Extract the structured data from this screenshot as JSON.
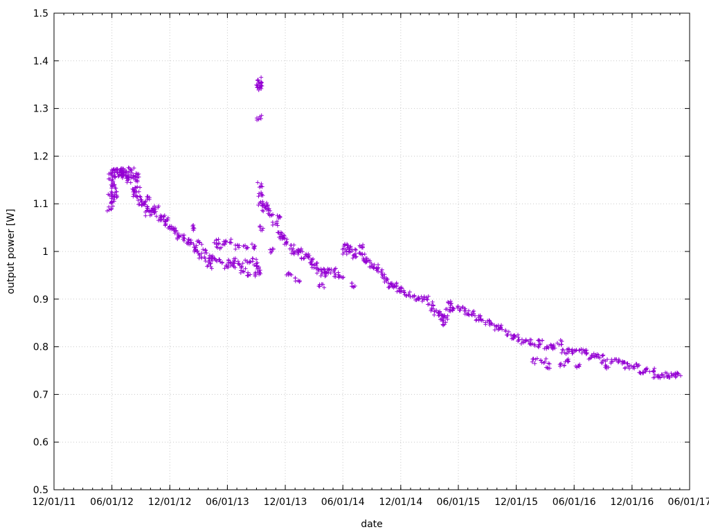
{
  "chart_data": {
    "type": "scatter",
    "xlabel": "date",
    "ylabel": "output power [W]",
    "xlim": [
      "2011-12-01",
      "2017-06-01"
    ],
    "ylim": [
      0.5,
      1.5
    ],
    "x_ticks": [
      "12/01/11",
      "06/01/12",
      "12/01/12",
      "06/01/13",
      "12/01/13",
      "06/01/14",
      "12/01/14",
      "06/01/15",
      "12/01/15",
      "06/01/16",
      "12/01/16",
      "06/01/17"
    ],
    "y_ticks": [
      0.5,
      0.6,
      0.7,
      0.8,
      0.9,
      1,
      1.1,
      1.2,
      1.3,
      1.4,
      1.5
    ],
    "y_tick_labels": [
      "0.5",
      "0.6",
      "0.7",
      "0.8",
      "0.9",
      "1",
      "1.1",
      "1.2",
      "1.3",
      "1.4",
      "1.5"
    ],
    "grid": true,
    "marker": "+",
    "color": "#9400d3",
    "series": [
      {
        "points": [
          [
            "2012-05-26",
            1.09
          ],
          [
            "2012-05-27",
            1.12
          ],
          [
            "2012-05-28",
            1.15
          ],
          [
            "2012-05-30",
            1.16
          ],
          [
            "2012-06-01",
            1.1
          ],
          [
            "2012-06-02",
            1.14
          ],
          [
            "2012-06-04",
            1.17
          ],
          [
            "2012-06-07",
            1.11
          ],
          [
            "2012-06-09",
            1.13
          ],
          [
            "2012-06-12",
            1.17
          ],
          [
            "2012-06-15",
            1.12
          ],
          [
            "2012-06-18",
            1.16
          ],
          [
            "2012-06-22",
            1.17
          ],
          [
            "2012-06-26",
            1.16
          ],
          [
            "2012-06-30",
            1.17
          ],
          [
            "2012-07-05",
            1.16
          ],
          [
            "2012-07-10",
            1.17
          ],
          [
            "2012-07-15",
            1.16
          ],
          [
            "2012-07-20",
            1.16
          ],
          [
            "2012-07-25",
            1.15
          ],
          [
            "2012-08-01",
            1.17
          ],
          [
            "2012-08-05",
            1.16
          ],
          [
            "2012-08-08",
            1.13
          ],
          [
            "2012-08-10",
            1.12
          ],
          [
            "2012-08-14",
            1.15
          ],
          [
            "2012-08-18",
            1.16
          ],
          [
            "2012-08-22",
            1.13
          ],
          [
            "2012-08-26",
            1.11
          ],
          [
            "2012-09-01",
            1.1
          ],
          [
            "2012-09-08",
            1.1
          ],
          [
            "2012-09-15",
            1.09
          ],
          [
            "2012-09-22",
            1.08
          ],
          [
            "2012-09-28",
            1.11
          ],
          [
            "2012-10-05",
            1.09
          ],
          [
            "2012-10-12",
            1.08
          ],
          [
            "2012-10-20",
            1.09
          ],
          [
            "2012-10-28",
            1.07
          ],
          [
            "2012-11-05",
            1.07
          ],
          [
            "2012-11-12",
            1.06
          ],
          [
            "2012-11-20",
            1.07
          ],
          [
            "2012-12-01",
            1.05
          ],
          [
            "2012-12-10",
            1.05
          ],
          [
            "2012-12-20",
            1.04
          ],
          [
            "2013-01-01",
            1.03
          ],
          [
            "2013-01-12",
            1.03
          ],
          [
            "2013-01-22",
            1.02
          ],
          [
            "2013-02-01",
            1.02
          ],
          [
            "2013-02-10",
            1.05
          ],
          [
            "2013-02-15",
            1.01
          ],
          [
            "2013-02-25",
            1.0
          ],
          [
            "2013-03-05",
            1.02
          ],
          [
            "2013-03-12",
            0.99
          ],
          [
            "2013-03-20",
            1.0
          ],
          [
            "2013-03-28",
            0.98
          ],
          [
            "2013-04-05",
            0.97
          ],
          [
            "2013-04-12",
            0.99
          ],
          [
            "2013-04-20",
            0.98
          ],
          [
            "2013-04-28",
            1.02
          ],
          [
            "2013-05-05",
            1.01
          ],
          [
            "2013-05-12",
            0.98
          ],
          [
            "2013-05-20",
            1.02
          ],
          [
            "2013-05-28",
            0.97
          ],
          [
            "2013-06-05",
            1.02
          ],
          [
            "2013-06-12",
            0.98
          ],
          [
            "2013-06-20",
            0.97
          ],
          [
            "2013-06-28",
            0.98
          ],
          [
            "2013-07-05",
            1.01
          ],
          [
            "2013-07-12",
            0.97
          ],
          [
            "2013-07-20",
            0.96
          ],
          [
            "2013-07-28",
            1.01
          ],
          [
            "2013-08-05",
            0.98
          ],
          [
            "2013-08-12",
            0.95
          ],
          [
            "2013-08-20",
            1.01
          ],
          [
            "2013-08-28",
            0.98
          ],
          [
            "2013-09-01",
            0.97
          ],
          [
            "2013-09-05",
            0.95
          ],
          [
            "2013-09-06",
            0.96
          ],
          [
            "2013-09-08",
            1.35
          ],
          [
            "2013-09-09",
            1.36
          ],
          [
            "2013-09-10",
            1.34
          ],
          [
            "2013-09-11",
            1.35
          ],
          [
            "2013-09-09",
            1.28
          ],
          [
            "2013-09-12",
            1.14
          ],
          [
            "2013-09-14",
            1.12
          ],
          [
            "2013-09-16",
            1.1
          ],
          [
            "2013-09-20",
            1.05
          ],
          [
            "2013-09-24",
            1.09
          ],
          [
            "2013-09-30",
            1.1
          ],
          [
            "2013-10-06",
            1.09
          ],
          [
            "2013-10-15",
            1.08
          ],
          [
            "2013-10-22",
            1.0
          ],
          [
            "2013-10-30",
            1.06
          ],
          [
            "2013-11-06",
            1.07
          ],
          [
            "2013-11-12",
            1.04
          ],
          [
            "2013-11-20",
            1.03
          ],
          [
            "2013-11-28",
            1.03
          ],
          [
            "2013-12-05",
            1.02
          ],
          [
            "2013-12-12",
            0.95
          ],
          [
            "2013-12-20",
            1.01
          ],
          [
            "2013-12-28",
            1.0
          ],
          [
            "2014-01-05",
            1.0
          ],
          [
            "2014-01-10",
            0.94
          ],
          [
            "2014-01-18",
            1.0
          ],
          [
            "2014-01-28",
            0.99
          ],
          [
            "2014-02-08",
            0.99
          ],
          [
            "2014-02-20",
            0.98
          ],
          [
            "2014-03-01",
            0.97
          ],
          [
            "2014-03-10",
            0.97
          ],
          [
            "2014-03-20",
            0.96
          ],
          [
            "2014-03-25",
            0.93
          ],
          [
            "2014-04-01",
            0.95
          ],
          [
            "2014-04-10",
            0.96
          ],
          [
            "2014-04-20",
            0.96
          ],
          [
            "2014-05-01",
            0.96
          ],
          [
            "2014-05-12",
            0.95
          ],
          [
            "2014-05-25",
            0.95
          ],
          [
            "2014-06-05",
            1.0
          ],
          [
            "2014-06-12",
            1.01
          ],
          [
            "2014-06-20",
            1.01
          ],
          [
            "2014-06-28",
            1.0
          ],
          [
            "2014-07-05",
            0.93
          ],
          [
            "2014-07-10",
            0.99
          ],
          [
            "2014-07-18",
            1.0
          ],
          [
            "2014-07-28",
            1.01
          ],
          [
            "2014-08-05",
            0.99
          ],
          [
            "2014-08-12",
            0.98
          ],
          [
            "2014-08-20",
            0.98
          ],
          [
            "2014-09-01",
            0.97
          ],
          [
            "2014-09-12",
            0.97
          ],
          [
            "2014-09-25",
            0.96
          ],
          [
            "2014-10-05",
            0.95
          ],
          [
            "2014-10-15",
            0.94
          ],
          [
            "2014-10-25",
            0.93
          ],
          [
            "2014-11-05",
            0.93
          ],
          [
            "2014-11-15",
            0.93
          ],
          [
            "2014-11-25",
            0.92
          ],
          [
            "2014-12-05",
            0.92
          ],
          [
            "2014-12-20",
            0.91
          ],
          [
            "2015-01-05",
            0.91
          ],
          [
            "2015-01-20",
            0.9
          ],
          [
            "2015-02-05",
            0.9
          ],
          [
            "2015-02-20",
            0.9
          ],
          [
            "2015-03-05",
            0.89
          ],
          [
            "2015-03-15",
            0.88
          ],
          [
            "2015-03-25",
            0.87
          ],
          [
            "2015-04-05",
            0.87
          ],
          [
            "2015-04-12",
            0.86
          ],
          [
            "2015-04-15",
            0.85
          ],
          [
            "2015-04-22",
            0.86
          ],
          [
            "2015-05-01",
            0.88
          ],
          [
            "2015-05-08",
            0.89
          ],
          [
            "2015-05-18",
            0.88
          ],
          [
            "2015-06-01",
            0.88
          ],
          [
            "2015-06-15",
            0.88
          ],
          [
            "2015-07-01",
            0.87
          ],
          [
            "2015-07-15",
            0.87
          ],
          [
            "2015-08-01",
            0.86
          ],
          [
            "2015-08-15",
            0.86
          ],
          [
            "2015-09-01",
            0.85
          ],
          [
            "2015-09-15",
            0.85
          ],
          [
            "2015-10-01",
            0.84
          ],
          [
            "2015-10-15",
            0.84
          ],
          [
            "2015-11-01",
            0.83
          ],
          [
            "2015-11-15",
            0.82
          ],
          [
            "2015-12-01",
            0.82
          ],
          [
            "2015-12-15",
            0.81
          ],
          [
            "2016-01-01",
            0.81
          ],
          [
            "2016-01-15",
            0.81
          ],
          [
            "2016-01-28",
            0.77
          ],
          [
            "2016-02-05",
            0.8
          ],
          [
            "2016-02-15",
            0.81
          ],
          [
            "2016-02-25",
            0.77
          ],
          [
            "2016-03-05",
            0.8
          ],
          [
            "2016-03-10",
            0.76
          ],
          [
            "2016-03-20",
            0.8
          ],
          [
            "2016-04-01",
            0.8
          ],
          [
            "2016-04-15",
            0.81
          ],
          [
            "2016-04-25",
            0.76
          ],
          [
            "2016-05-01",
            0.79
          ],
          [
            "2016-05-10",
            0.77
          ],
          [
            "2016-05-20",
            0.79
          ],
          [
            "2016-06-01",
            0.79
          ],
          [
            "2016-06-15",
            0.76
          ],
          [
            "2016-06-25",
            0.79
          ],
          [
            "2016-07-10",
            0.79
          ],
          [
            "2016-07-25",
            0.78
          ],
          [
            "2016-08-10",
            0.78
          ],
          [
            "2016-08-25",
            0.78
          ],
          [
            "2016-09-05",
            0.77
          ],
          [
            "2016-09-15",
            0.76
          ],
          [
            "2016-10-01",
            0.77
          ],
          [
            "2016-10-15",
            0.77
          ],
          [
            "2016-11-01",
            0.77
          ],
          [
            "2016-11-15",
            0.76
          ],
          [
            "2016-12-01",
            0.76
          ],
          [
            "2016-12-15",
            0.76
          ],
          [
            "2017-01-01",
            0.75
          ],
          [
            "2017-01-15",
            0.75
          ],
          [
            "2017-02-01",
            0.75
          ],
          [
            "2017-02-15",
            0.74
          ],
          [
            "2017-03-01",
            0.74
          ],
          [
            "2017-03-15",
            0.74
          ],
          [
            "2017-04-01",
            0.74
          ],
          [
            "2017-04-15",
            0.74
          ],
          [
            "2017-04-25",
            0.74
          ]
        ]
      }
    ]
  }
}
